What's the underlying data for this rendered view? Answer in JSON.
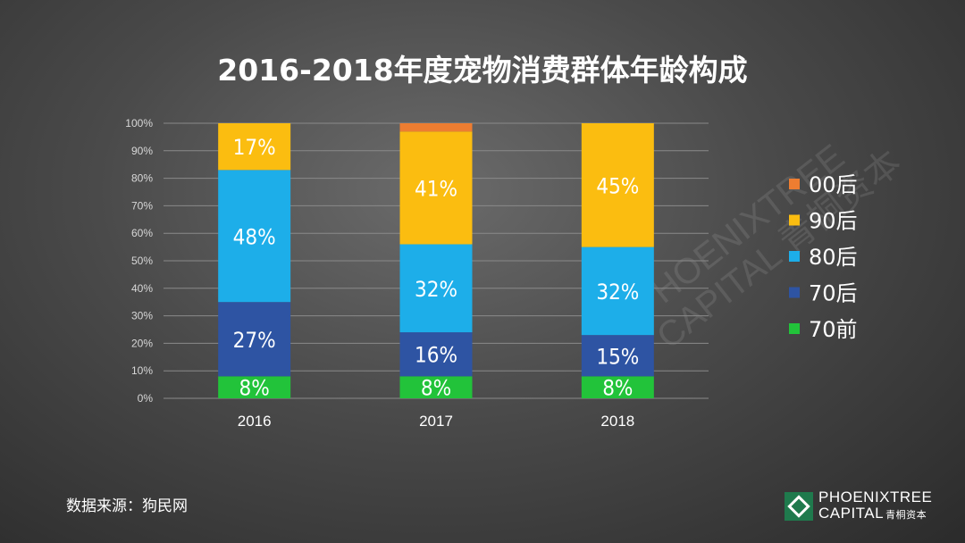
{
  "chart_data": {
    "type": "bar",
    "stacked": true,
    "title": "2016-2018年度宠物消费群体年龄构成",
    "categories": [
      "2016",
      "2017",
      "2018"
    ],
    "ylim": [
      0,
      100
    ],
    "yticks": [
      "0%",
      "10%",
      "20%",
      "30%",
      "40%",
      "50%",
      "60%",
      "70%",
      "80%",
      "90%",
      "100%"
    ],
    "grid": true,
    "legend_position": "right",
    "series": [
      {
        "name": "70前",
        "color": "#22c33a",
        "values": [
          8,
          8,
          8
        ],
        "labels": [
          "8%",
          "8%",
          "8%"
        ]
      },
      {
        "name": "70后",
        "color": "#2e54a3",
        "values": [
          27,
          16,
          15
        ],
        "labels": [
          "27%",
          "16%",
          "15%"
        ]
      },
      {
        "name": "80后",
        "color": "#1daee9",
        "values": [
          48,
          32,
          32
        ],
        "labels": [
          "48%",
          "32%",
          "32%"
        ]
      },
      {
        "name": "90后",
        "color": "#fbbd10",
        "values": [
          17,
          41,
          45
        ],
        "labels": [
          "17%",
          "41%",
          "45%"
        ]
      },
      {
        "name": "00后",
        "color": "#ed7d31",
        "values": [
          0,
          3,
          0
        ],
        "labels": [
          "",
          "",
          ""
        ]
      }
    ],
    "legend_order": [
      "00后",
      "90后",
      "80后",
      "70后",
      "70前"
    ]
  },
  "source": "数据来源：狗民网",
  "watermark": [
    "PHOENIXTREE",
    "CAPITAL 青桐资本"
  ],
  "logo": {
    "line1": "PHOENIXTREE",
    "line2": "CAPITAL",
    "line2_cn": "青桐资本"
  }
}
